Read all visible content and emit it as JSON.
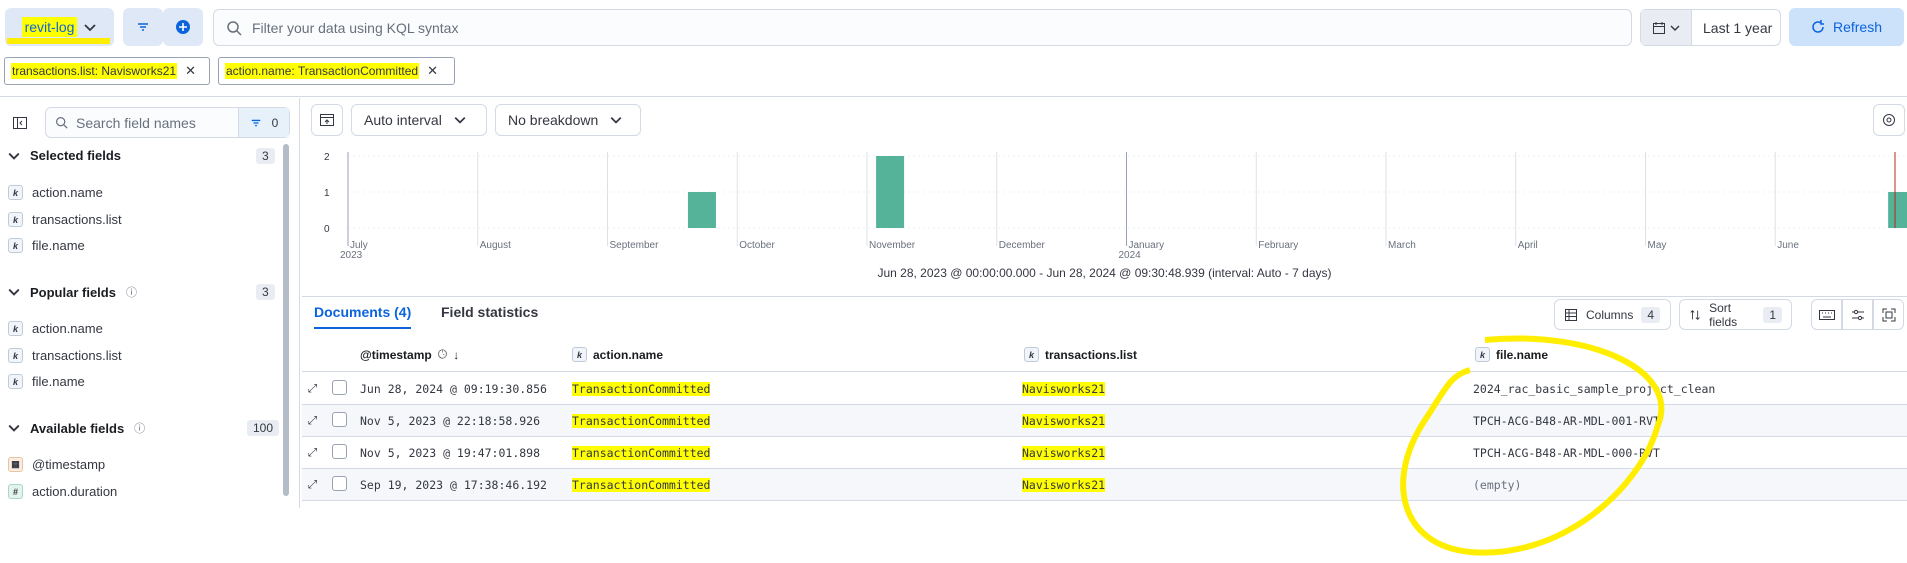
{
  "header": {
    "data_view": "revit-log",
    "search_placeholder": "Filter your data using KQL syntax",
    "date_range": "Last 1 year",
    "refresh_label": "Refresh"
  },
  "filters": [
    {
      "label": "transactions.list: Navisworks21"
    },
    {
      "label": "action.name: TransactionCommitted"
    }
  ],
  "sidebar": {
    "search_placeholder": "Search field names",
    "filter_count": "0",
    "selected": {
      "title": "Selected fields",
      "count": "3",
      "fields": [
        "action.name",
        "transactions.list",
        "file.name"
      ]
    },
    "popular": {
      "title": "Popular fields",
      "count": "3",
      "fields": [
        "action.name",
        "transactions.list",
        "file.name"
      ]
    },
    "available": {
      "title": "Available fields",
      "count": "100",
      "fields": [
        {
          "name": "@timestamp",
          "type": "date"
        },
        {
          "name": "action.duration",
          "type": "number"
        }
      ]
    }
  },
  "toolbar": {
    "interval": "Auto interval",
    "breakdown": "No breakdown"
  },
  "chart_data": {
    "type": "bar",
    "ylim": [
      0,
      2
    ],
    "y_ticks": [
      "2",
      "1",
      "0"
    ],
    "x_ticks": [
      {
        "label": "July",
        "sub": "2023"
      },
      {
        "label": "August",
        "sub": ""
      },
      {
        "label": "September",
        "sub": ""
      },
      {
        "label": "October",
        "sub": ""
      },
      {
        "label": "November",
        "sub": ""
      },
      {
        "label": "December",
        "sub": ""
      },
      {
        "label": "January",
        "sub": "2024"
      },
      {
        "label": "February",
        "sub": ""
      },
      {
        "label": "March",
        "sub": ""
      },
      {
        "label": "April",
        "sub": ""
      },
      {
        "label": "May",
        "sub": ""
      },
      {
        "label": "June",
        "sub": ""
      }
    ],
    "bars": [
      {
        "x": "Sep 2023",
        "value": 1
      },
      {
        "x": "Nov 2023",
        "value": 2
      },
      {
        "x": "Jun 2024",
        "value": 1
      }
    ],
    "color": "#54b399"
  },
  "time_range": "Jun 28, 2023 @ 00:00:00.000 - Jun 28, 2024 @ 09:30:48.939 (interval: Auto - 7 days)",
  "tabs": {
    "documents": "Documents (4)",
    "stats": "Field statistics"
  },
  "right_controls": {
    "columns": "Columns",
    "columns_count": "4",
    "sort": "Sort fields",
    "sort_count": "1"
  },
  "grid": {
    "headers": [
      "@timestamp",
      "action.name",
      "transactions.list",
      "file.name"
    ],
    "rows": [
      {
        "ts": "Jun 28, 2024 @ 09:19:30.856",
        "action": "TransactionCommitted",
        "list": "Navisworks21",
        "file": "2024_rac_basic_sample_project_clean"
      },
      {
        "ts": "Nov 5, 2023 @ 22:18:58.926",
        "action": "TransactionCommitted",
        "list": "Navisworks21",
        "file": "TPCH-ACG-B48-AR-MDL-001-RVT"
      },
      {
        "ts": "Nov 5, 2023 @ 19:47:01.898",
        "action": "TransactionCommitted",
        "list": "Navisworks21",
        "file": "TPCH-ACG-B48-AR-MDL-000-RVT"
      },
      {
        "ts": "Sep 19, 2023 @ 17:38:46.192",
        "action": "TransactionCommitted",
        "list": "Navisworks21",
        "file": "(empty)"
      }
    ]
  }
}
